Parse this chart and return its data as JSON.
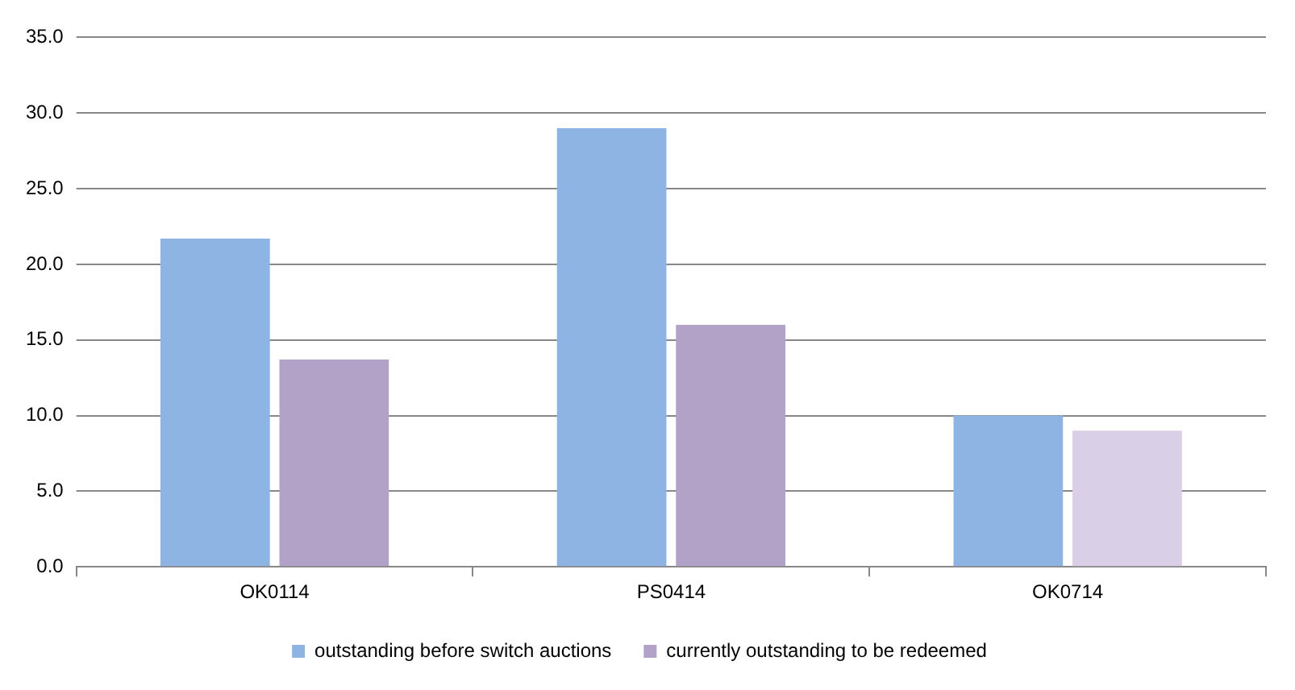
{
  "chart_data": {
    "type": "bar",
    "categories": [
      "OK0114",
      "PS0414",
      "OK0714"
    ],
    "series": [
      {
        "name": "outstanding before switch auctions",
        "color": "#8eb4e3",
        "values": [
          21.7,
          29.0,
          10.0
        ]
      },
      {
        "name": "currently outstanding to be redeemed",
        "color": "#b3a2c7",
        "colors": [
          "#b3a2c7",
          "#b3a2c7",
          "#d9cfe6"
        ],
        "values": [
          13.7,
          16.0,
          9.0
        ]
      }
    ],
    "ylim": [
      0,
      35
    ],
    "yticks": [
      {
        "value": 0,
        "label": "0.0"
      },
      {
        "value": 5,
        "label": "5.0"
      },
      {
        "value": 10,
        "label": "10.0"
      },
      {
        "value": 15,
        "label": "15.0"
      },
      {
        "value": 20,
        "label": "20.0"
      },
      {
        "value": 25,
        "label": "25.0"
      },
      {
        "value": 30,
        "label": "30.0"
      },
      {
        "value": 35,
        "label": "35.0"
      }
    ],
    "grid": "y",
    "legend": "bottom"
  }
}
